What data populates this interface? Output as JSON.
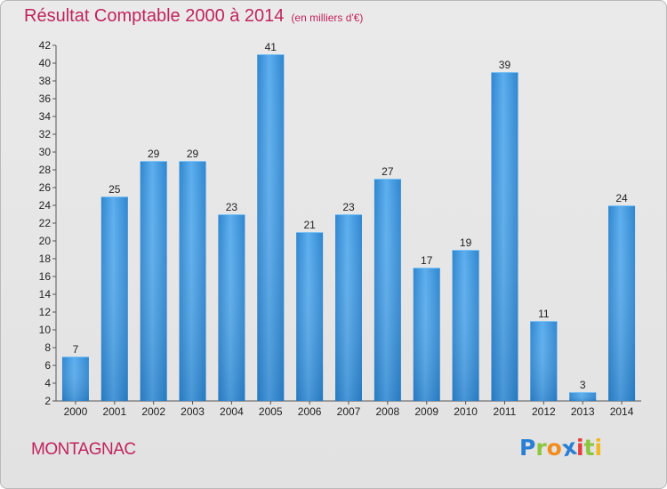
{
  "title": "Résultat Comptable 2000 à 2014",
  "subtitle": "(en milliers d'€)",
  "commune": "MONTAGNAC",
  "logo": {
    "letters": [
      "P",
      "r",
      "o",
      "x",
      "i",
      "t",
      "i"
    ],
    "colors": [
      "#2a7fd4",
      "#8cc63f",
      "#f28c1e",
      "#2a7fd4",
      "#e73c3c",
      "#8cc63f",
      "#f2b71e"
    ]
  },
  "colors": {
    "bar": "#3f97dd",
    "bar_light": "#5daeec",
    "bar_dark": "#2a78c0",
    "title": "#c0245c"
  },
  "chart_data": {
    "type": "bar",
    "categories": [
      "2000",
      "2001",
      "2002",
      "2003",
      "2004",
      "2005",
      "2006",
      "2007",
      "2008",
      "2009",
      "2010",
      "2011",
      "2012",
      "2013",
      "2014"
    ],
    "values": [
      7,
      25,
      29,
      29,
      23,
      41,
      21,
      23,
      27,
      17,
      19,
      39,
      11,
      3,
      24
    ],
    "ylim": [
      2,
      42
    ],
    "yticks": [
      2,
      4,
      6,
      8,
      10,
      12,
      14,
      16,
      18,
      20,
      22,
      24,
      26,
      28,
      30,
      32,
      34,
      36,
      38,
      40,
      42
    ],
    "grid": false,
    "title": "Résultat Comptable 2000 à 2014",
    "xlabel": "",
    "ylabel": ""
  }
}
